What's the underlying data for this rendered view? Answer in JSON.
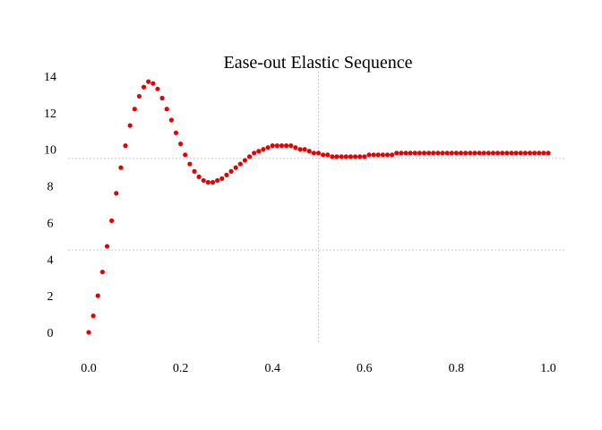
{
  "chart_data": {
    "type": "scatter",
    "title": "Ease-out Elastic Sequence",
    "xlabel": "",
    "ylabel": "",
    "xlim": [
      0.0,
      1.0
    ],
    "ylim": [
      0,
      14
    ],
    "x_ticks": [
      "0.0",
      "0.2",
      "0.4",
      "0.6",
      "0.8",
      "1.0"
    ],
    "y_ticks": [
      "0",
      "2",
      "4",
      "6",
      "8",
      "10",
      "12",
      "14"
    ],
    "grid": {
      "x": [
        0.5
      ],
      "y": [
        4.5,
        9.5
      ]
    },
    "legend": "none",
    "marker_color": "#e80000",
    "series": [
      {
        "x": [
          0.0,
          0.01,
          0.02,
          0.03,
          0.04,
          0.05,
          0.06,
          0.07,
          0.08,
          0.09,
          0.1,
          0.11,
          0.12,
          0.13,
          0.14,
          0.15,
          0.16,
          0.17,
          0.18,
          0.19,
          0.2,
          0.21,
          0.22,
          0.23,
          0.24,
          0.25,
          0.26,
          0.27,
          0.28,
          0.29,
          0.3,
          0.31,
          0.32,
          0.33,
          0.34,
          0.35,
          0.36,
          0.37,
          0.38,
          0.39,
          0.4,
          0.41,
          0.42,
          0.43,
          0.44,
          0.45,
          0.46,
          0.47,
          0.48,
          0.49,
          0.5,
          0.51,
          0.52,
          0.53,
          0.54,
          0.55,
          0.56,
          0.57,
          0.58,
          0.59,
          0.6,
          0.61,
          0.62,
          0.63,
          0.64,
          0.65,
          0.66,
          0.67,
          0.68,
          0.69,
          0.7,
          0.71,
          0.72,
          0.73,
          0.74,
          0.75,
          0.76,
          0.77,
          0.78,
          0.79,
          0.8,
          0.81,
          0.82,
          0.83,
          0.84,
          0.85,
          0.86,
          0.87,
          0.88,
          0.89,
          0.9,
          0.91,
          0.92,
          0.93,
          0.94,
          0.95,
          0.96,
          0.97,
          0.98,
          0.99,
          1.0
        ],
        "y": [
          0.0,
          0.9,
          2.0,
          3.3,
          4.7,
          6.1,
          7.6,
          9.0,
          10.2,
          11.3,
          12.2,
          12.9,
          13.4,
          13.7,
          13.6,
          13.3,
          12.8,
          12.2,
          11.6,
          10.9,
          10.3,
          9.7,
          9.2,
          8.8,
          8.5,
          8.3,
          8.2,
          8.2,
          8.3,
          8.4,
          8.6,
          8.8,
          9.0,
          9.2,
          9.4,
          9.6,
          9.8,
          9.9,
          10.0,
          10.1,
          10.2,
          10.2,
          10.2,
          10.2,
          10.2,
          10.1,
          10.0,
          10.0,
          9.9,
          9.8,
          9.8,
          9.7,
          9.7,
          9.6,
          9.6,
          9.6,
          9.6,
          9.6,
          9.6,
          9.6,
          9.6,
          9.7,
          9.7,
          9.7,
          9.7,
          9.7,
          9.7,
          9.8,
          9.8,
          9.8,
          9.8,
          9.8,
          9.8,
          9.8,
          9.8,
          9.8,
          9.8,
          9.8,
          9.8,
          9.8,
          9.8,
          9.8,
          9.8,
          9.8,
          9.8,
          9.8,
          9.8,
          9.8,
          9.8,
          9.8,
          9.8,
          9.8,
          9.8,
          9.8,
          9.8,
          9.8,
          9.8,
          9.8,
          9.8,
          9.8,
          9.8
        ]
      }
    ]
  }
}
